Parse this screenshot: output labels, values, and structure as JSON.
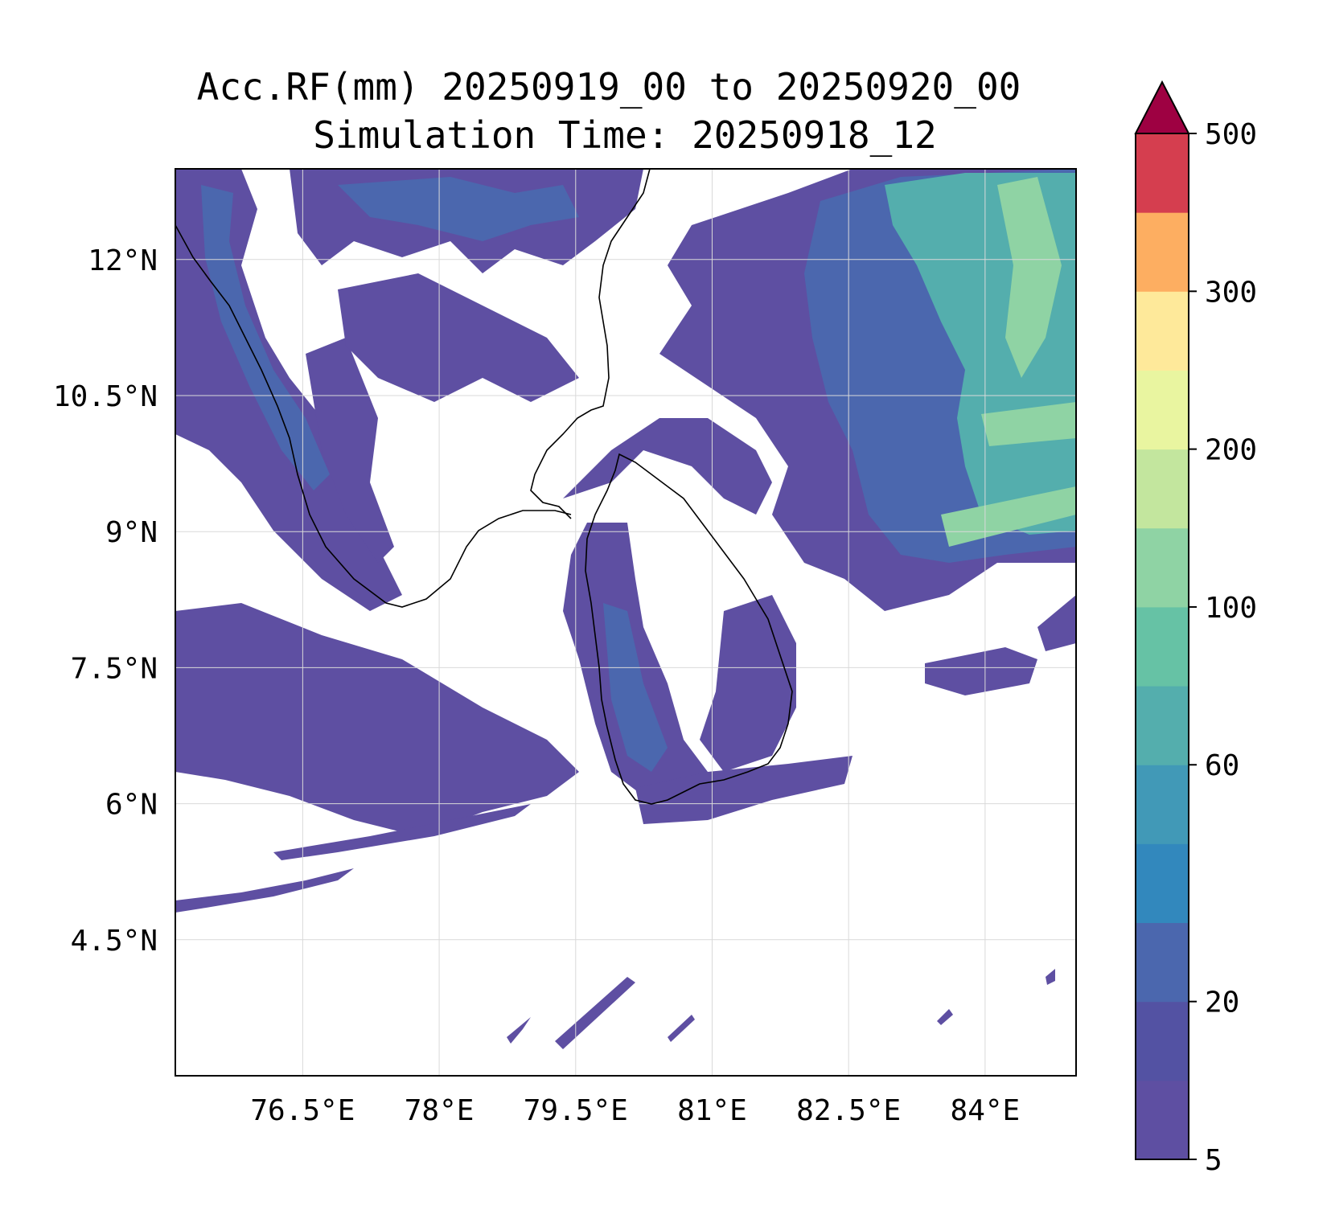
{
  "title": {
    "line1": "Acc.RF(mm) 20250919_00 to 20250920_00",
    "line2": "Simulation Time: 20250918_12"
  },
  "map": {
    "lon_range": [
      75.1,
      85.0
    ],
    "lat_range": [
      3.0,
      13.0
    ],
    "x_ticks": [
      {
        "value": 76.5,
        "label": "76.5°E"
      },
      {
        "value": 78.0,
        "label": "78°E"
      },
      {
        "value": 79.5,
        "label": "79.5°E"
      },
      {
        "value": 81.0,
        "label": "81°E"
      },
      {
        "value": 82.5,
        "label": "82.5°E"
      },
      {
        "value": 84.0,
        "label": "84°E"
      }
    ],
    "y_ticks": [
      {
        "value": 12.0,
        "label": "12°N"
      },
      {
        "value": 10.5,
        "label": "10.5°N"
      },
      {
        "value": 9.0,
        "label": "9°N"
      },
      {
        "value": 7.5,
        "label": "7.5°N"
      },
      {
        "value": 6.0,
        "label": "6°N"
      },
      {
        "value": 4.5,
        "label": "4.5°N"
      }
    ],
    "grid": true,
    "coastline_color": "#000000"
  },
  "colorbar": {
    "levels": [
      5,
      10,
      20,
      40,
      50,
      60,
      80,
      100,
      150,
      200,
      250,
      300,
      400,
      500
    ],
    "labels": [
      {
        "level_index": 0,
        "label": "5"
      },
      {
        "level_index": 2,
        "label": "20"
      },
      {
        "level_index": 5,
        "label": "60"
      },
      {
        "level_index": 7,
        "label": "100"
      },
      {
        "level_index": 9,
        "label": "200"
      },
      {
        "level_index": 11,
        "label": "300"
      },
      {
        "level_index": 13,
        "label": "500"
      }
    ],
    "colors": [
      "#5e4fa2",
      "#5352a3",
      "#4b67ae",
      "#3288bd",
      "#4199b7",
      "#54aead",
      "#66c2a5",
      "#8fd3a4",
      "#c3e69e",
      "#e9f5a0",
      "#fee99a",
      "#fdae61",
      "#d53e4f"
    ],
    "extend_color": "#9e0142",
    "extend": "max"
  }
}
